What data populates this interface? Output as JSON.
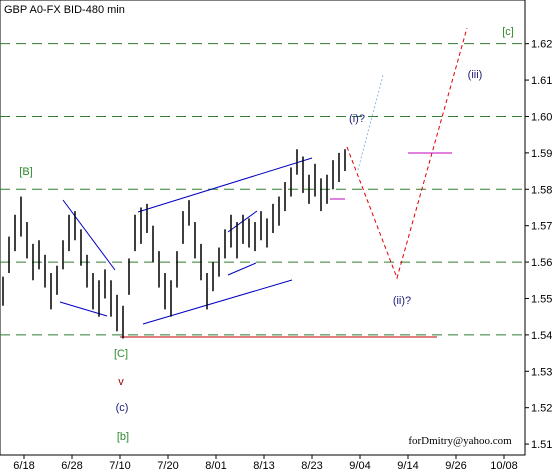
{
  "chart_data": {
    "type": "ohlc",
    "title": "GBP A0-FX BID-480 min",
    "color": "#000000",
    "high": [
      1.556,
      1.567,
      1.573,
      1.578,
      1.571,
      1.565,
      1.566,
      1.562,
      1.557,
      1.559,
      1.566,
      1.573,
      1.574,
      1.569,
      1.562,
      1.557,
      1.555,
      1.558,
      1.555,
      1.551,
      1.548,
      1.561,
      1.573,
      1.575,
      1.576,
      1.57,
      1.563,
      1.557,
      1.555,
      1.563,
      1.574,
      1.577,
      1.571,
      1.565,
      1.557,
      1.56,
      1.564,
      1.569,
      1.573,
      1.571,
      1.573,
      1.572,
      1.571,
      1.574,
      1.572,
      1.576,
      1.578,
      1.582,
      1.586,
      1.591,
      1.589,
      1.584,
      1.587,
      1.583,
      1.584,
      1.588,
      1.59,
      1.591
    ],
    "low": [
      1.548,
      1.557,
      1.563,
      1.567,
      1.561,
      1.555,
      1.558,
      1.553,
      1.547,
      1.551,
      1.558,
      1.563,
      1.566,
      1.559,
      1.553,
      1.547,
      1.545,
      1.55,
      1.545,
      1.541,
      1.539,
      1.551,
      1.563,
      1.565,
      1.568,
      1.56,
      1.553,
      1.547,
      1.545,
      1.553,
      1.565,
      1.57,
      1.561,
      1.555,
      1.547,
      1.552,
      1.556,
      1.561,
      1.564,
      1.561,
      1.565,
      1.564,
      1.563,
      1.566,
      1.564,
      1.568,
      1.57,
      1.574,
      1.578,
      1.584,
      1.579,
      1.576,
      1.578,
      1.574,
      1.576,
      1.58,
      1.582,
      1.585
    ],
    "ylim": [
      1.507,
      1.632
    ],
    "yticks": [
      1.51,
      1.52,
      1.53,
      1.54,
      1.55,
      1.56,
      1.57,
      1.58,
      1.59,
      {
        "value": 1.6,
        "label": "1.60"
      },
      1.61,
      1.62
    ],
    "levels": [
      1.54,
      1.56,
      1.58,
      1.6,
      1.62
    ],
    "x_labels": [
      "6/18",
      "6/28",
      "7/10",
      "7/20",
      "8/01",
      "8/13",
      "8/23",
      "9/04",
      "9/14",
      "9/26",
      "10/08"
    ],
    "annotations": [
      "[c]",
      "(iii)",
      "(i)?",
      "[B]",
      "(ii)?",
      "[C]",
      "v",
      "(c)",
      "[b]",
      "forDmitry@yahoo.com"
    ]
  }
}
